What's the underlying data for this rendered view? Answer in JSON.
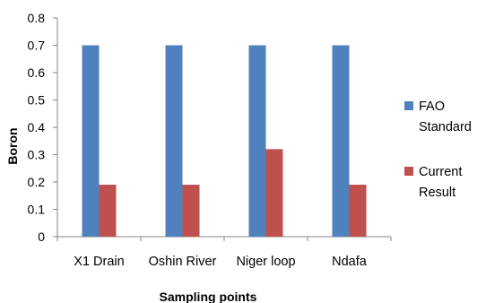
{
  "chart_data": {
    "type": "bar",
    "categories": [
      "X1 Drain",
      "Oshin River",
      "Niger loop",
      "Ndafa"
    ],
    "series": [
      {
        "name": "FAO Standard",
        "name_lines": [
          "FAO",
          "Standard"
        ],
        "color": "#4F81BD",
        "values": [
          0.7,
          0.7,
          0.7,
          0.7
        ]
      },
      {
        "name": "Current Result",
        "name_lines": [
          "Current",
          "Result"
        ],
        "color": "#C0504D",
        "values": [
          0.19,
          0.19,
          0.32,
          0.19
        ]
      }
    ],
    "xlabel": "Sampling points",
    "ylabel": "Boron",
    "ylim": [
      0,
      0.8
    ],
    "yticks": [
      "0",
      "0.1",
      "0.2",
      "0.3",
      "0.4",
      "0.5",
      "0.6",
      "0.7",
      "0.8"
    ],
    "grid": false,
    "legend_position": "right"
  }
}
